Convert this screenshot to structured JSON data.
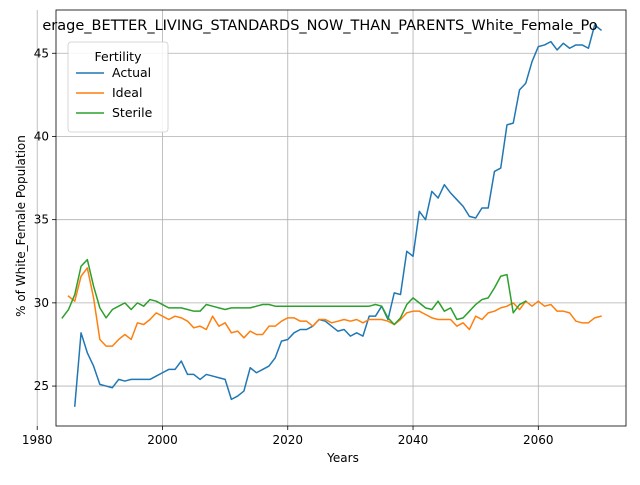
{
  "chart_data": {
    "type": "line",
    "title": "erage_BETTER_LIVING_STANDARDS_NOW_THAN_PARENTS_White_Female_Po",
    "xlabel": "Years",
    "ylabel": "% of White_Female Population",
    "xlim": [
      1983,
      2074
    ],
    "ylim": [
      22.6,
      47.6
    ],
    "xticks": [
      1980,
      2000,
      2020,
      2040,
      2060
    ],
    "yticks": [
      25,
      30,
      35,
      40,
      45
    ],
    "grid": true,
    "legend": {
      "title": "Fertility",
      "placement": "top-left"
    },
    "series": [
      {
        "name": "Actual",
        "color": "#1f77b4",
        "x": [
          1986,
          1987,
          1988,
          1989,
          1990,
          1991,
          1992,
          1993,
          1994,
          1995,
          1996,
          1997,
          1998,
          1999,
          2000,
          2001,
          2002,
          2003,
          2004,
          2005,
          2006,
          2007,
          2008,
          2009,
          2010,
          2011,
          2012,
          2013,
          2014,
          2015,
          2016,
          2017,
          2018,
          2019,
          2020,
          2021,
          2022,
          2023,
          2024,
          2025,
          2026,
          2027,
          2028,
          2029,
          2030,
          2031,
          2032,
          2033,
          2034,
          2035,
          2036,
          2037,
          2038,
          2039,
          2040,
          2041,
          2042,
          2043,
          2044,
          2045,
          2046,
          2047,
          2048,
          2049,
          2050,
          2051,
          2052,
          2053,
          2054,
          2055,
          2056,
          2057,
          2058,
          2059,
          2060,
          2061,
          2062,
          2063,
          2064,
          2065,
          2066,
          2067,
          2068,
          2069,
          2070
        ],
        "y": [
          23.8,
          28.2,
          27.0,
          26.2,
          25.1,
          25.0,
          24.9,
          25.4,
          25.3,
          25.4,
          25.4,
          25.4,
          25.4,
          25.6,
          25.8,
          26.0,
          26.0,
          26.5,
          25.7,
          25.7,
          25.4,
          25.7,
          25.6,
          25.5,
          25.4,
          24.2,
          24.4,
          24.7,
          26.1,
          25.8,
          26.0,
          26.2,
          26.7,
          27.7,
          27.8,
          28.2,
          28.4,
          28.4,
          28.6,
          29.0,
          28.9,
          28.6,
          28.3,
          28.4,
          28.0,
          28.2,
          28.0,
          29.2,
          29.2,
          29.8,
          29.0,
          30.6,
          30.5,
          33.1,
          32.8,
          35.5,
          35.0,
          36.7,
          36.3,
          37.1,
          36.6,
          36.2,
          35.8,
          35.2,
          35.1,
          35.7,
          35.7,
          37.9,
          38.1,
          40.7,
          40.8,
          42.8,
          43.2,
          44.5,
          45.4,
          45.5,
          45.7,
          45.2,
          45.6,
          45.3,
          45.5,
          45.5,
          45.3,
          46.7,
          46.4
        ]
      },
      {
        "name": "Ideal",
        "color": "#ff7f0e",
        "x": [
          1985,
          1986,
          1987,
          1988,
          1989,
          1990,
          1991,
          1992,
          1993,
          1994,
          1995,
          1996,
          1997,
          1998,
          1999,
          2000,
          2001,
          2002,
          2003,
          2004,
          2005,
          2006,
          2007,
          2008,
          2009,
          2010,
          2011,
          2012,
          2013,
          2014,
          2015,
          2016,
          2017,
          2018,
          2019,
          2020,
          2021,
          2022,
          2023,
          2024,
          2025,
          2026,
          2027,
          2028,
          2029,
          2030,
          2031,
          2032,
          2033,
          2034,
          2035,
          2036,
          2037,
          2038,
          2039,
          2040,
          2041,
          2042,
          2043,
          2044,
          2045,
          2046,
          2047,
          2048,
          2049,
          2050,
          2051,
          2052,
          2053,
          2054,
          2055,
          2056,
          2057,
          2058,
          2059,
          2060,
          2061,
          2062,
          2063,
          2064,
          2065,
          2066,
          2067,
          2068,
          2069,
          2070
        ],
        "y": [
          30.4,
          30.1,
          31.6,
          32.1,
          30.3,
          27.8,
          27.4,
          27.4,
          27.8,
          28.1,
          27.8,
          28.8,
          28.7,
          29.0,
          29.4,
          29.2,
          29.0,
          29.2,
          29.1,
          28.9,
          28.5,
          28.6,
          28.4,
          29.2,
          28.6,
          28.8,
          28.2,
          28.3,
          27.9,
          28.3,
          28.1,
          28.1,
          28.6,
          28.6,
          28.9,
          29.1,
          29.1,
          28.9,
          28.9,
          28.6,
          29.0,
          29.0,
          28.8,
          28.9,
          29.0,
          28.9,
          29.0,
          28.8,
          29.0,
          29.0,
          29.0,
          28.9,
          28.7,
          29.0,
          29.4,
          29.5,
          29.5,
          29.3,
          29.1,
          29.0,
          29.0,
          29.0,
          28.6,
          28.8,
          28.4,
          29.2,
          29.0,
          29.4,
          29.5,
          29.7,
          29.8,
          30.0,
          29.6,
          30.1,
          29.8,
          30.1,
          29.8,
          29.9,
          29.5,
          29.5,
          29.4,
          28.9,
          28.8,
          28.8,
          29.1,
          29.2
        ]
      },
      {
        "name": "Sterile",
        "color": "#2ca02c",
        "x": [
          1984,
          1985,
          1986,
          1987,
          1988,
          1989,
          1990,
          1991,
          1992,
          1993,
          1994,
          1995,
          1996,
          1997,
          1998,
          1999,
          2000,
          2001,
          2002,
          2003,
          2004,
          2005,
          2006,
          2007,
          2008,
          2009,
          2010,
          2011,
          2012,
          2013,
          2014,
          2015,
          2016,
          2017,
          2018,
          2019,
          2020,
          2021,
          2022,
          2023,
          2024,
          2025,
          2026,
          2027,
          2028,
          2029,
          2030,
          2031,
          2032,
          2033,
          2034,
          2035,
          2036,
          2037,
          2038,
          2039,
          2040,
          2041,
          2042,
          2043,
          2044,
          2045,
          2046,
          2047,
          2048,
          2049,
          2050,
          2051,
          2052,
          2053,
          2054,
          2055,
          2056,
          2057,
          2058
        ],
        "y": [
          29.1,
          29.6,
          30.5,
          32.2,
          32.6,
          31.0,
          29.7,
          29.1,
          29.6,
          29.8,
          30.0,
          29.6,
          30.0,
          29.8,
          30.2,
          30.1,
          29.9,
          29.7,
          29.7,
          29.7,
          29.6,
          29.5,
          29.5,
          29.9,
          29.8,
          29.7,
          29.6,
          29.7,
          29.7,
          29.7,
          29.7,
          29.8,
          29.9,
          29.9,
          29.8,
          29.8,
          29.8,
          29.8,
          29.8,
          29.8,
          29.8,
          29.8,
          29.8,
          29.8,
          29.8,
          29.8,
          29.8,
          29.8,
          29.8,
          29.8,
          29.9,
          29.8,
          29.1,
          28.7,
          29.1,
          29.9,
          30.3,
          30.0,
          29.7,
          29.6,
          30.1,
          29.5,
          29.7,
          29.0,
          29.1,
          29.5,
          29.9,
          30.2,
          30.3,
          30.9,
          31.6,
          31.7,
          29.4,
          29.9,
          30.1
        ]
      }
    ]
  }
}
